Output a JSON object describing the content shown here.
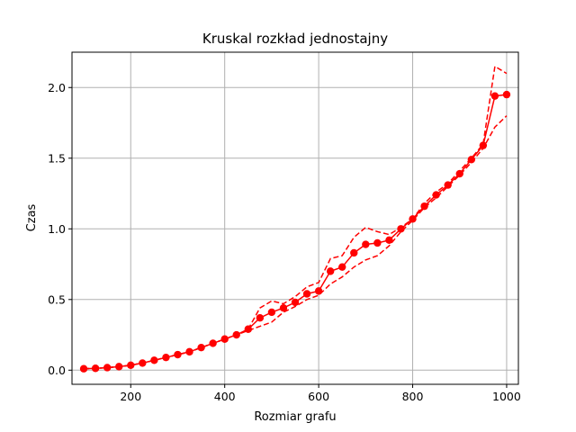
{
  "chart_data": {
    "type": "line",
    "title": "Kruskal rozkład jednostajny",
    "xlabel": "Rozmiar grafu",
    "ylabel": "Czas",
    "xlim": [
      75,
      1025
    ],
    "ylim": [
      -0.1,
      2.25
    ],
    "xticks": [
      200,
      400,
      600,
      800,
      1000
    ],
    "yticks": [
      0.0,
      0.5,
      1.0,
      1.5,
      2.0
    ],
    "xtick_labels": [
      "200",
      "400",
      "600",
      "800",
      "1000"
    ],
    "ytick_labels": [
      "0.0",
      "0.5",
      "1.0",
      "1.5",
      "2.0"
    ],
    "grid": true,
    "color": "#ff0000",
    "x": [
      100,
      125,
      150,
      175,
      200,
      225,
      250,
      275,
      300,
      325,
      350,
      375,
      400,
      425,
      450,
      475,
      500,
      525,
      550,
      575,
      600,
      625,
      650,
      675,
      700,
      725,
      750,
      775,
      800,
      825,
      850,
      875,
      900,
      925,
      950,
      975,
      1000
    ],
    "series": [
      {
        "style": "solid-markers",
        "values": [
          0.01,
          0.013,
          0.018,
          0.025,
          0.035,
          0.05,
          0.07,
          0.09,
          0.11,
          0.13,
          0.16,
          0.19,
          0.22,
          0.25,
          0.29,
          0.37,
          0.41,
          0.44,
          0.48,
          0.54,
          0.56,
          0.7,
          0.73,
          0.83,
          0.89,
          0.9,
          0.92,
          1.0,
          1.07,
          1.16,
          1.24,
          1.31,
          1.39,
          1.49,
          1.59,
          1.94,
          1.95
        ]
      },
      {
        "style": "dashed",
        "values": [
          0.01,
          0.013,
          0.018,
          0.025,
          0.035,
          0.05,
          0.07,
          0.09,
          0.11,
          0.13,
          0.16,
          0.19,
          0.22,
          0.25,
          0.29,
          0.44,
          0.49,
          0.47,
          0.52,
          0.59,
          0.62,
          0.79,
          0.81,
          0.94,
          1.01,
          0.98,
          0.96,
          1.01,
          1.07,
          1.18,
          1.26,
          1.32,
          1.41,
          1.5,
          1.6,
          2.15,
          2.1
        ]
      },
      {
        "style": "dashed",
        "values": [
          0.01,
          0.013,
          0.018,
          0.025,
          0.035,
          0.05,
          0.07,
          0.09,
          0.11,
          0.13,
          0.16,
          0.19,
          0.22,
          0.25,
          0.28,
          0.31,
          0.34,
          0.41,
          0.45,
          0.5,
          0.53,
          0.61,
          0.66,
          0.73,
          0.78,
          0.81,
          0.88,
          0.98,
          1.06,
          1.15,
          1.22,
          1.3,
          1.38,
          1.47,
          1.57,
          1.72,
          1.8
        ]
      }
    ]
  }
}
